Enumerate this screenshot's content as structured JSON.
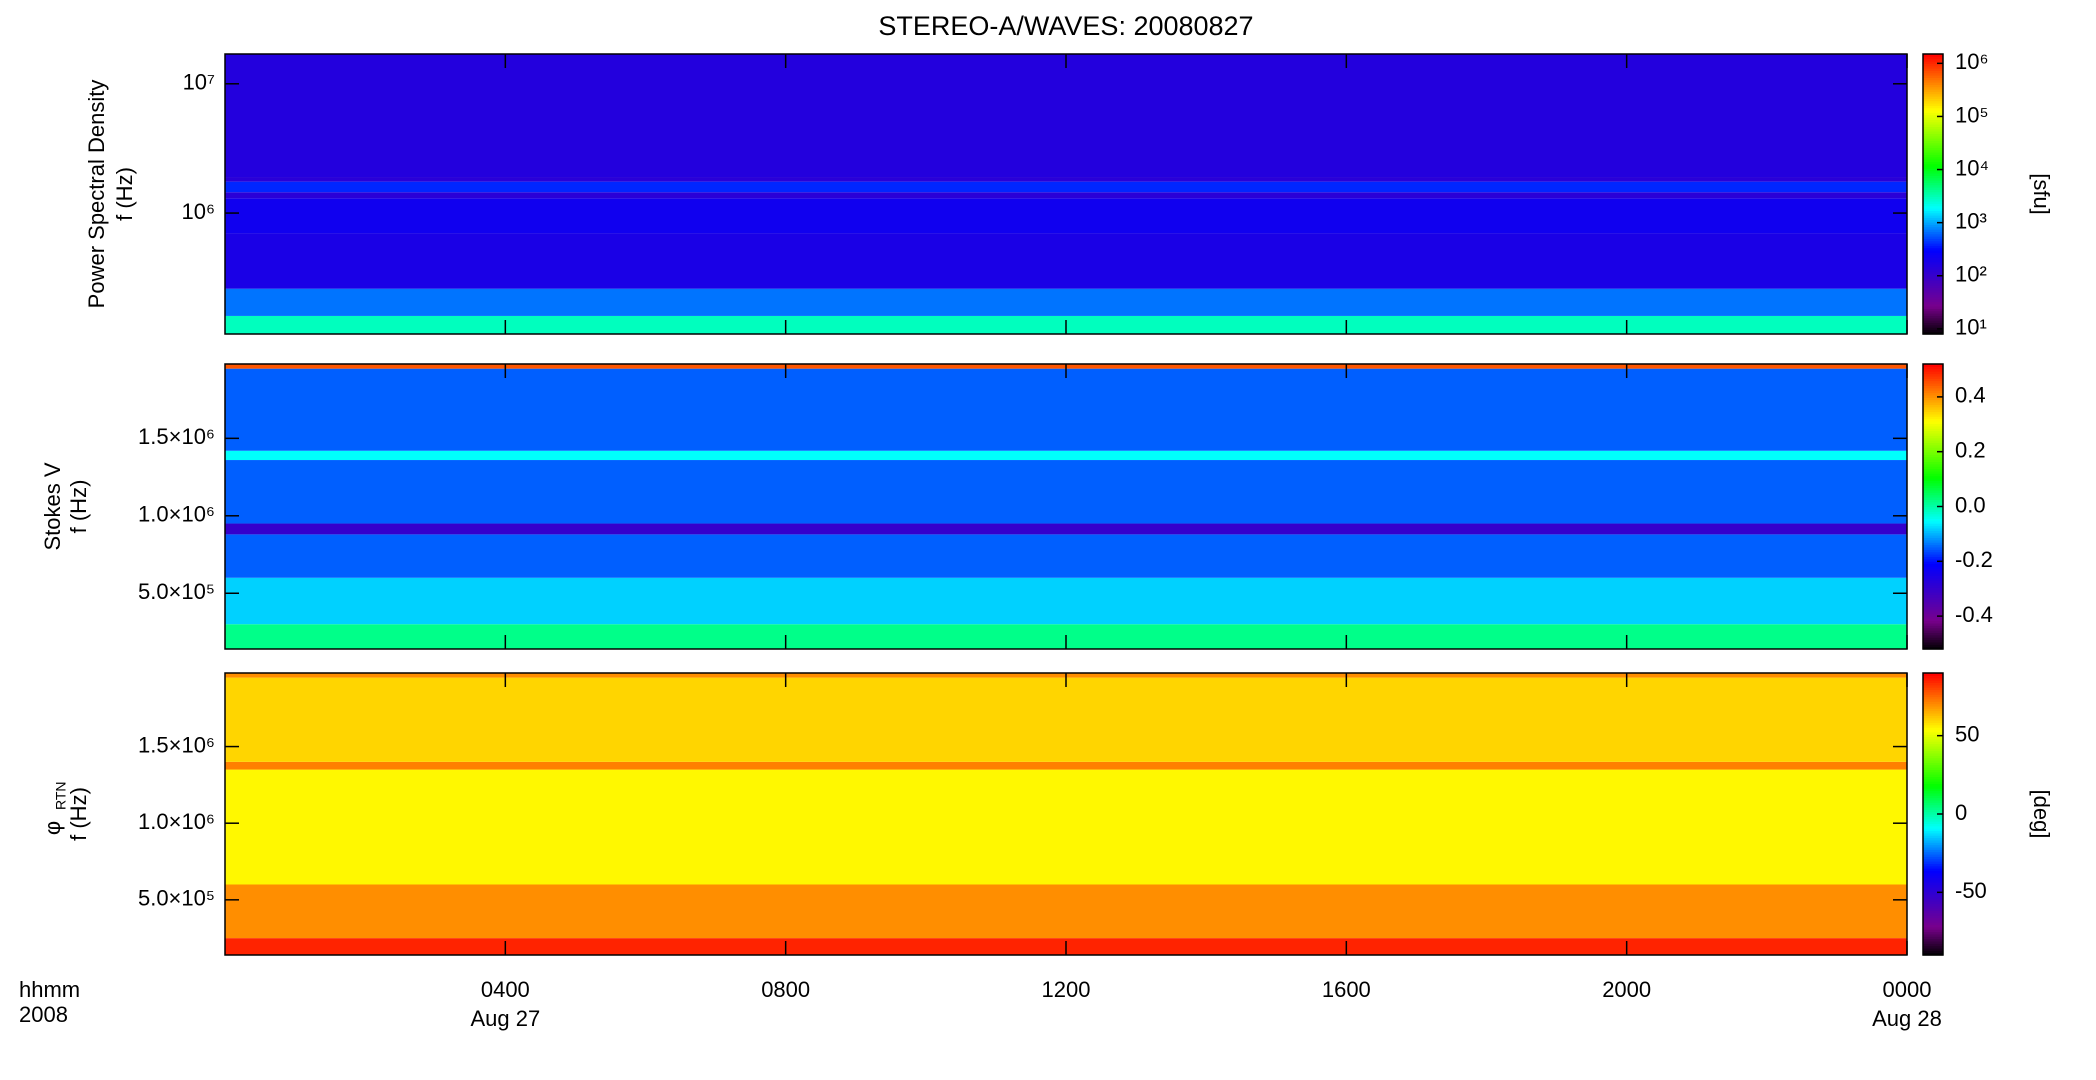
{
  "chart_data": [
    {
      "type": "heatmap",
      "title": "STEREO-A/WAVES: 20080827",
      "y_label": "Power Spectral Density",
      "y_label_2": "f (Hz)",
      "y_scale": "log",
      "xlim": [
        0,
        24
      ],
      "xticks": [
        {
          "value": 4,
          "label": "0400"
        },
        {
          "value": 8,
          "label": "0800"
        },
        {
          "value": 12,
          "label": "1200"
        },
        {
          "value": 16,
          "label": "1600"
        },
        {
          "value": 20,
          "label": "2000"
        },
        {
          "value": 24,
          "label": "0000"
        }
      ],
      "ylim": [
        116000,
        17000000
      ],
      "yticks": [
        {
          "value": 1000000,
          "label": "10⁶"
        },
        {
          "value": 10000000,
          "label": "10⁷"
        }
      ],
      "colorbar": {
        "scale": "log",
        "lim": [
          8,
          1500000
        ],
        "label": "[sfu]",
        "ticks": [
          {
            "value": 10,
            "label": "10¹"
          },
          {
            "value": 100,
            "label": "10²"
          },
          {
            "value": 1000,
            "label": "10³"
          },
          {
            "value": 10000,
            "label": "10⁴"
          },
          {
            "value": 100000,
            "label": "10⁵"
          },
          {
            "value": 1000000,
            "label": "10⁶"
          }
        ]
      },
      "band_edges": [
        116000,
        160000,
        260000,
        700000,
        1300000,
        1450000,
        1750000,
        1900000,
        17000000
      ],
      "band_values": [
        3000,
        700,
        180,
        220,
        130,
        400,
        130,
        150
      ]
    },
    {
      "type": "heatmap",
      "y_label": "Stokes V",
      "y_label_2": "f (Hz)",
      "y_scale": "linear",
      "xlim": [
        0,
        24
      ],
      "xticks": [
        {
          "value": 4,
          "label": "0400"
        },
        {
          "value": 8,
          "label": "0800"
        },
        {
          "value": 12,
          "label": "1200"
        },
        {
          "value": 16,
          "label": "1600"
        },
        {
          "value": 20,
          "label": "2000"
        },
        {
          "value": 24,
          "label": "0000"
        }
      ],
      "ylim": [
        140000,
        1980000
      ],
      "yticks": [
        {
          "value": 500000,
          "label": "5.0×10⁵"
        },
        {
          "value": 1000000,
          "label": "1.0×10⁶"
        },
        {
          "value": 1500000,
          "label": "1.5×10⁶"
        }
      ],
      "colorbar": {
        "scale": "linear",
        "lim": [
          -0.52,
          0.52
        ],
        "ticks": [
          -0.4,
          -0.2,
          {
            "value": 0,
            "label": "0.0"
          },
          0.2,
          0.4
        ]
      },
      "band_edges": [
        140000,
        300000,
        600000,
        880000,
        950000,
        1360000,
        1420000,
        1950000,
        1980000
      ],
      "band_values": [
        0.02,
        -0.08,
        -0.15,
        -0.3,
        -0.15,
        -0.05,
        -0.15,
        0.45
      ]
    },
    {
      "type": "heatmap",
      "y_label": "φ",
      "y_label_sub": "RTN",
      "y_label_2": "f (Hz)",
      "y_scale": "linear",
      "xlim": [
        0,
        24
      ],
      "xticks": [
        {
          "value": 4,
          "label": "0400"
        },
        {
          "value": 8,
          "label": "0800"
        },
        {
          "value": 12,
          "label": "1200"
        },
        {
          "value": 16,
          "label": "1600"
        },
        {
          "value": 20,
          "label": "2000"
        },
        {
          "value": 24,
          "label": "0000"
        }
      ],
      "x_label": "hhmm",
      "x_label_2": "2008",
      "date_labels": [
        {
          "value": 4,
          "label": "Aug 27"
        },
        {
          "value": 24,
          "label": "Aug 28"
        }
      ],
      "ylim": [
        140000,
        1980000
      ],
      "yticks": [
        {
          "value": 500000,
          "label": "5.0×10⁵"
        },
        {
          "value": 1000000,
          "label": "1.0×10⁶"
        },
        {
          "value": 1500000,
          "label": "1.5×10⁶"
        }
      ],
      "colorbar": {
        "scale": "linear",
        "lim": [
          -90,
          90
        ],
        "label": "[deg]",
        "ticks": [
          -50,
          0,
          50
        ]
      },
      "band_edges": [
        140000,
        250000,
        600000,
        1350000,
        1400000,
        1950000,
        1980000
      ],
      "band_values": [
        85,
        70,
        55,
        72,
        60,
        70
      ]
    }
  ]
}
